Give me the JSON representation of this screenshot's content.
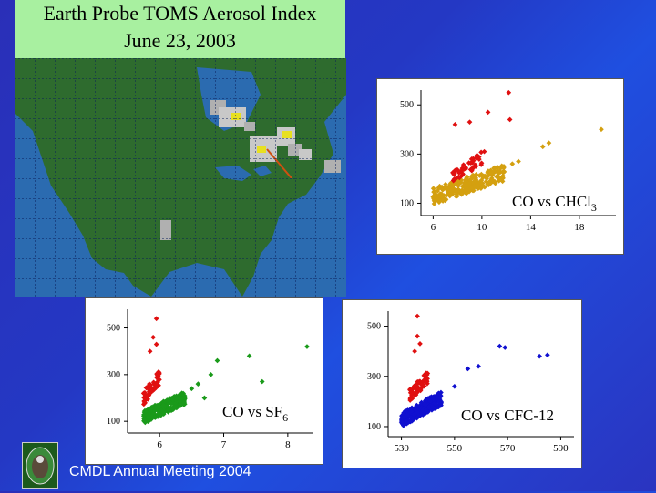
{
  "title": {
    "line1": "Earth Probe TOMS Aerosol Index",
    "line2": "June 23, 2003"
  },
  "footer": {
    "text": "CMDL Annual Meeting 2004"
  },
  "colors": {
    "ocean": "#2b6bb0",
    "land": "#2e6b2e",
    "title_bg": "#a8f0a0",
    "red": "#e01010",
    "gold": "#d4a010",
    "green": "#1a9a1a",
    "blue": "#1010d0"
  },
  "chart_data": [
    {
      "id": "chcl3",
      "type": "scatter",
      "label_main": "CO vs CHCl",
      "label_sub": "3",
      "xlim": [
        5,
        21
      ],
      "ylim": [
        50,
        560
      ],
      "xticks": [
        "6",
        "10",
        "14",
        "18"
      ],
      "xtick_values": [
        6,
        10,
        14,
        18
      ],
      "yticks": [
        "100",
        "300",
        "500"
      ],
      "ytick_values": [
        100,
        300,
        500
      ],
      "series": [
        {
          "color": "#d4a010",
          "cluster": {
            "xmin": 6,
            "xmax": 12,
            "ymin": 95,
            "ymax": 260,
            "n": 260
          },
          "extra": [
            [
              15,
              330
            ],
            [
              15.5,
              345
            ],
            [
              19.8,
              400
            ],
            [
              13,
              270
            ],
            [
              12.5,
              260
            ]
          ]
        },
        {
          "color": "#e01010",
          "cluster": {
            "xmin": 7.5,
            "xmax": 10,
            "ymin": 180,
            "ymax": 310,
            "n": 45
          },
          "extra": [
            [
              12.2,
              550
            ],
            [
              10.5,
              470
            ],
            [
              12.3,
              440
            ],
            [
              9,
              430
            ],
            [
              7.8,
              420
            ],
            [
              10.2,
              310
            ]
          ]
        }
      ]
    },
    {
      "id": "sf6",
      "type": "scatter",
      "label_main": "CO vs SF",
      "label_sub": "6",
      "xlim": [
        5.5,
        8.4
      ],
      "ylim": [
        50,
        580
      ],
      "xticks": [
        "6",
        "7",
        "8"
      ],
      "xtick_values": [
        6,
        7,
        8
      ],
      "yticks": [
        "100",
        "300",
        "500"
      ],
      "ytick_values": [
        100,
        300,
        500
      ],
      "series": [
        {
          "color": "#1a9a1a",
          "cluster": {
            "xmin": 5.75,
            "xmax": 6.4,
            "ymin": 90,
            "ymax": 230,
            "n": 260
          },
          "extra": [
            [
              6.9,
              360
            ],
            [
              7.4,
              380
            ],
            [
              7.6,
              270
            ],
            [
              8.3,
              420
            ],
            [
              6.8,
              300
            ],
            [
              6.6,
              260
            ],
            [
              6.5,
              240
            ],
            [
              6.7,
              200
            ]
          ]
        },
        {
          "color": "#e01010",
          "cluster": {
            "xmin": 5.75,
            "xmax": 6.0,
            "ymin": 170,
            "ymax": 320,
            "n": 60
          },
          "extra": [
            [
              5.95,
              540
            ],
            [
              5.9,
              460
            ],
            [
              5.95,
              430
            ],
            [
              5.85,
              400
            ]
          ]
        }
      ]
    },
    {
      "id": "cfc12",
      "type": "scatter",
      "label_main": "CO vs CFC-12",
      "label_sub": "",
      "xlim": [
        525,
        595
      ],
      "ylim": [
        60,
        560
      ],
      "xticks": [
        "530",
        "550",
        "570",
        "590"
      ],
      "xtick_values": [
        530,
        550,
        570,
        590
      ],
      "yticks": [
        "100",
        "300",
        "500"
      ],
      "ytick_values": [
        100,
        300,
        500
      ],
      "series": [
        {
          "color": "#1010d0",
          "cluster": {
            "xmin": 530,
            "xmax": 545,
            "ymin": 100,
            "ymax": 240,
            "n": 280
          },
          "extra": [
            [
              567,
              420
            ],
            [
              569,
              415
            ],
            [
              559,
              340
            ],
            [
              555,
              330
            ],
            [
              582,
              380
            ],
            [
              585,
              385
            ],
            [
              550,
              260
            ]
          ]
        },
        {
          "color": "#e01010",
          "cluster": {
            "xmin": 533,
            "xmax": 540,
            "ymin": 200,
            "ymax": 320,
            "n": 60
          },
          "extra": [
            [
              536,
              540
            ],
            [
              536,
              460
            ],
            [
              537,
              430
            ],
            [
              535,
              400
            ]
          ]
        }
      ]
    }
  ]
}
